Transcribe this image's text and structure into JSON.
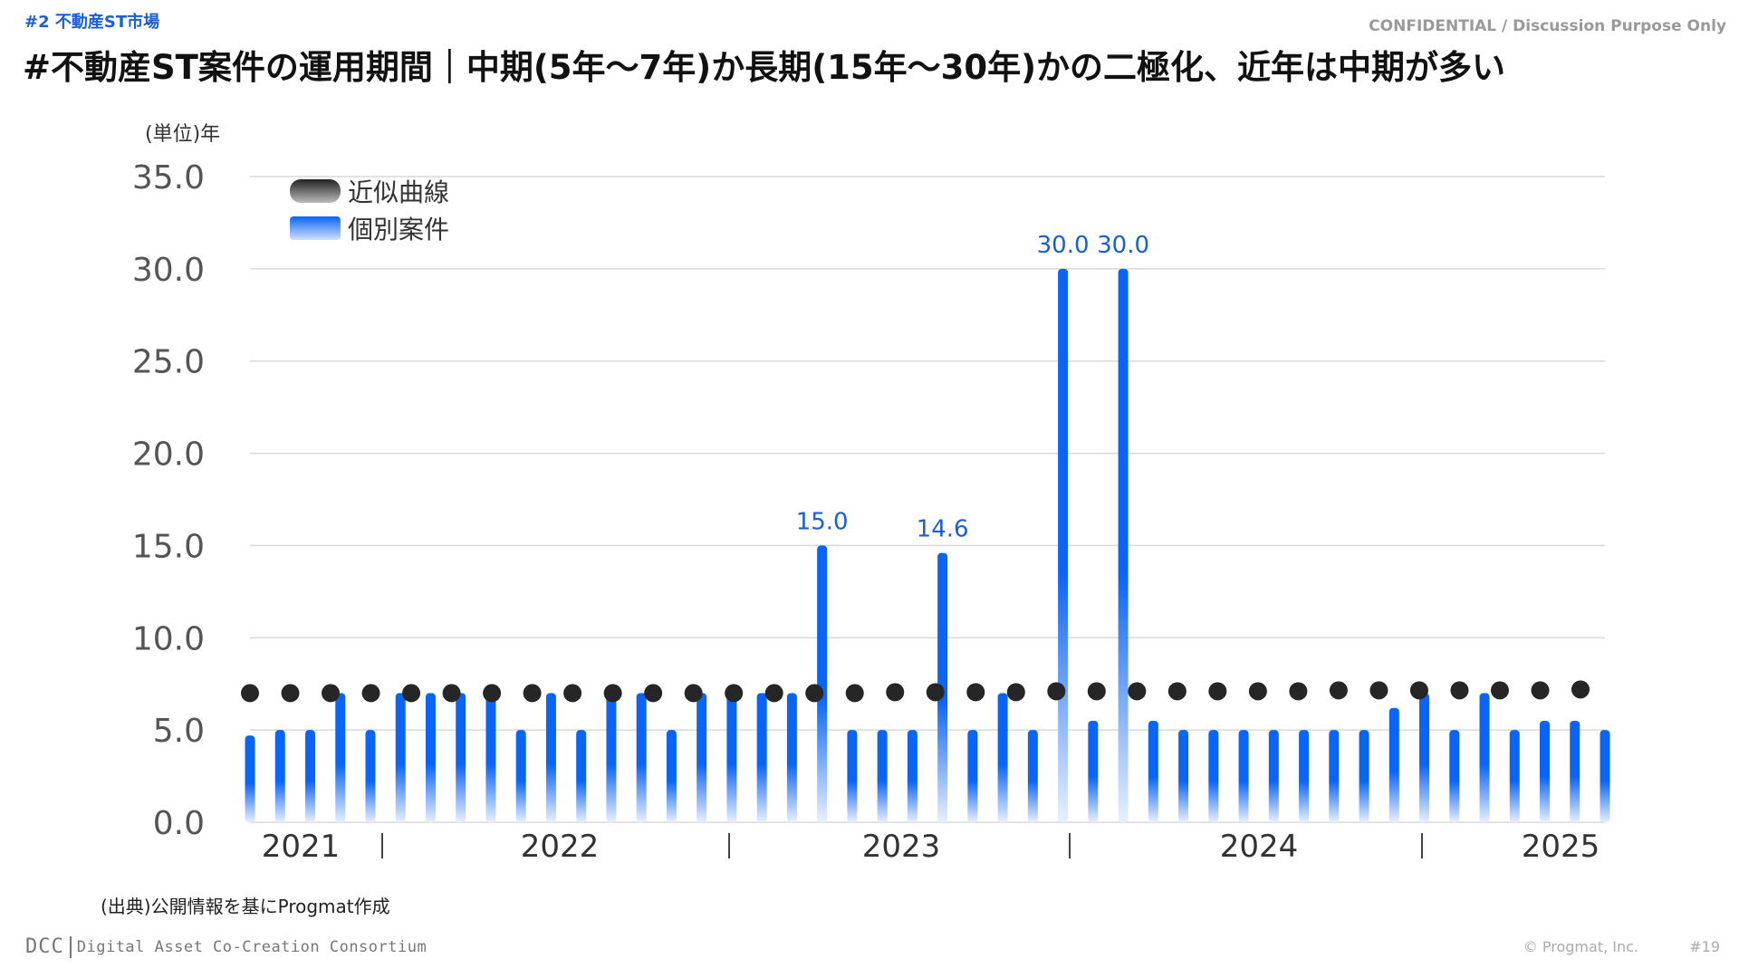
{
  "header": {
    "section_tag": "#2 不動産ST市場",
    "confidential": "CONFIDENTIAL / Discussion Purpose Only",
    "title": "#不動産ST案件の運用期間｜中期(5年～7年)か長期(15年～30年)かの二極化、近年は中期が多い"
  },
  "unit_label": "(単位)年",
  "source": "(出典)公開情報を基にProgmat作成",
  "footer": {
    "logo_abbr": "DCC",
    "logo_full": "Digital Asset Co-Creation Consortium",
    "copyright": "© Progmat, Inc.",
    "page": "#19"
  },
  "colors": {
    "bar_top": "#0a64f5",
    "bar_bottom": "#e8f0ff",
    "dot": "#262626",
    "label": "#1a5fd6",
    "grid": "#d9d9d9",
    "tick": "#555555"
  },
  "chart_data": {
    "type": "bar",
    "ylim": [
      0,
      35
    ],
    "yticks": [
      "0.0",
      "5.0",
      "10.0",
      "15.0",
      "20.0",
      "25.0",
      "30.0",
      "35.0"
    ],
    "x_year_labels": [
      "2021",
      "2022",
      "2023",
      "2024",
      "2025"
    ],
    "legend": [
      "近似曲線",
      "個別案件"
    ],
    "legend_position": "top-left",
    "series": [
      {
        "name": "個別案件",
        "kind": "bar",
        "values": [
          4.7,
          5.0,
          5.0,
          7.0,
          5.0,
          7.0,
          7.0,
          7.0,
          7.0,
          5.0,
          7.0,
          5.0,
          7.0,
          7.0,
          5.0,
          7.0,
          7.0,
          7.0,
          7.0,
          15.0,
          5.0,
          5.0,
          5.0,
          14.6,
          5.0,
          7.0,
          5.0,
          30.0,
          5.5,
          30.0,
          5.5,
          5.0,
          5.0,
          5.0,
          5.0,
          5.0,
          5.0,
          5.0,
          6.2,
          7.0,
          5.0,
          7.0,
          5.0,
          5.5,
          5.5,
          5.0
        ],
        "data_labels": [
          "",
          "",
          "",
          "",
          "",
          "",
          "",
          "",
          "",
          "",
          "",
          "",
          "",
          "",
          "",
          "",
          "",
          "",
          "",
          "15.0",
          "",
          "",
          "",
          "14.6",
          "",
          "",
          "",
          "30.0",
          "",
          "30.0",
          "",
          "",
          "",
          "",
          "",
          "",
          "",
          "",
          "",
          "",
          "",
          "",
          "",
          "",
          "",
          ""
        ]
      },
      {
        "name": "近似曲線",
        "kind": "dots",
        "values": [
          7.0,
          7.0,
          7.0,
          7.0,
          7.0,
          7.0,
          7.0,
          7.0,
          7.0,
          7.0,
          7.0,
          7.0,
          7.0,
          7.0,
          7.0,
          7.0,
          7.05,
          7.05,
          7.05,
          7.05,
          7.1,
          7.1,
          7.1,
          7.1,
          7.1,
          7.1,
          7.1,
          7.15,
          7.15,
          7.15,
          7.15,
          7.15,
          7.15,
          7.2
        ]
      }
    ]
  }
}
